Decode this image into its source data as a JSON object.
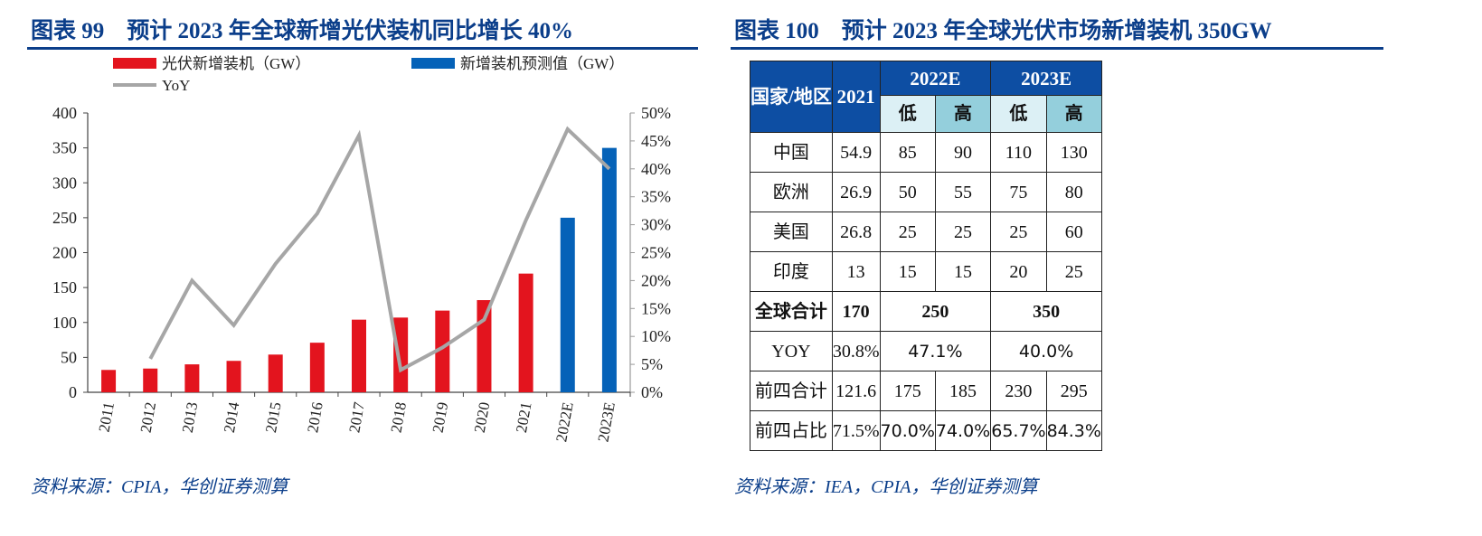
{
  "left": {
    "title": "图表 99　预计 2023 年全球新增光伏装机同比增长 40%",
    "source": "资料来源：CPIA，华创证券测算"
  },
  "right": {
    "title": "图表 100　预计 2023 年全球光伏市场新增装机 350GW",
    "source": "资料来源：IEA，CPIA，华创证券测算",
    "table": {
      "h_region": "国家/地区",
      "h_2021": "2021",
      "h_2022": "2022E",
      "h_2023": "2023E",
      "low": "低",
      "high": "高",
      "rows": [
        {
          "name": "中国",
          "v": [
            "54.9",
            "85",
            "90",
            "110",
            "130"
          ]
        },
        {
          "name": "欧洲",
          "v": [
            "26.9",
            "50",
            "55",
            "75",
            "80"
          ]
        },
        {
          "name": "美国",
          "v": [
            "26.8",
            "25",
            "25",
            "25",
            "60"
          ]
        },
        {
          "name": "印度",
          "v": [
            "13",
            "15",
            "15",
            "20",
            "25"
          ]
        }
      ],
      "total": {
        "name": "全球合计",
        "v": [
          "170",
          "250",
          "350"
        ]
      },
      "yoy": {
        "name": "YOY",
        "v": [
          "30.8%",
          "47.1%",
          "40.0%"
        ]
      },
      "top4": {
        "name": "前四合计",
        "v": [
          "121.6",
          "175",
          "185",
          "230",
          "295"
        ]
      },
      "top4share": {
        "name": "前四占比",
        "v": [
          "71.5%",
          "70.0%",
          "74.0%",
          "65.7%",
          "84.3%"
        ]
      }
    }
  },
  "chart_data": {
    "type": "bar+line",
    "categories": [
      "2011",
      "2012",
      "2013",
      "2014",
      "2015",
      "2016",
      "2017",
      "2018",
      "2019",
      "2020",
      "2021",
      "2022E",
      "2023E"
    ],
    "series": [
      {
        "name": "光伏新增装机（GW）",
        "type": "bar",
        "axis": "left",
        "color": "#e3141e",
        "values": [
          32,
          34,
          40,
          45,
          54,
          71,
          104,
          107,
          117,
          132,
          170,
          null,
          null
        ]
      },
      {
        "name": "新增装机预测值（GW）",
        "type": "bar",
        "axis": "left",
        "color": "#0562b8",
        "values": [
          null,
          null,
          null,
          null,
          null,
          null,
          null,
          null,
          null,
          null,
          null,
          250,
          350
        ]
      },
      {
        "name": "YoY",
        "type": "line",
        "axis": "right",
        "color": "#a6a6a6",
        "values": [
          null,
          6,
          20,
          12,
          23,
          32,
          46,
          4,
          8,
          13,
          30.8,
          47.1,
          40
        ]
      }
    ],
    "ylim": [
      0,
      400
    ],
    "yticks": [
      0,
      50,
      100,
      150,
      200,
      250,
      300,
      350,
      400
    ],
    "y2lim": [
      0,
      50
    ],
    "y2ticks": [
      "0%",
      "5%",
      "10%",
      "15%",
      "20%",
      "25%",
      "30%",
      "35%",
      "40%",
      "45%",
      "50%"
    ],
    "legend": "top",
    "grid": false
  }
}
